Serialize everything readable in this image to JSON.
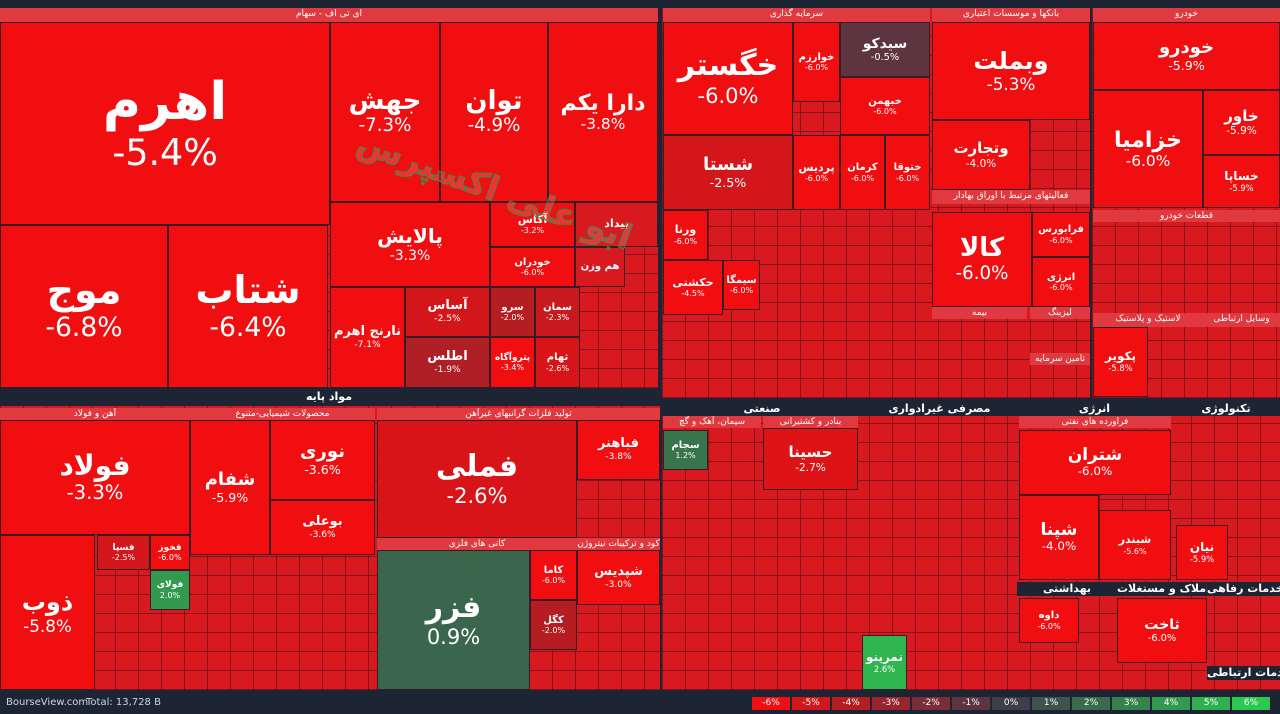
{
  "header": {
    "top_sub": "ای تی اف - سهام"
  },
  "sectors": [
    {
      "title": "مواد پایه"
    },
    {
      "title": "آهن و فولاد"
    },
    {
      "title": "محصولات شیمیایی-متنوع"
    },
    {
      "title": "تولید فلزات گرانبهای غیرآهن"
    },
    {
      "title": "کانی های فلزی"
    },
    {
      "title": "کود و ترکیبات نیتروژن"
    },
    {
      "title": "سرمایه گذاری"
    },
    {
      "title": "بانکها و موسسات اعتباری"
    },
    {
      "title": "فعالیتهای مرتبط با اوراق بهادار"
    },
    {
      "title": "بیمه"
    },
    {
      "title": "لیزینگ"
    },
    {
      "title": "تامین سرمایه"
    },
    {
      "title": "خودرو"
    },
    {
      "title": "قطعات خودرو"
    },
    {
      "title": "لاستیک و پلاستیک"
    },
    {
      "title": "وسایل ارتباطی"
    },
    {
      "title": "صنعتی"
    },
    {
      "title": "مصرفی غیرادواری"
    },
    {
      "title": "انرژی"
    },
    {
      "title": "تکنولوژی"
    },
    {
      "title": "سیمان، آهک و گچ"
    },
    {
      "title": "بنادر و کشتیرانی"
    },
    {
      "title": "فراورده های نفتی"
    },
    {
      "title": "بهداشتی"
    },
    {
      "title": "املاک و مستغلات"
    },
    {
      "title": "خدمات رفاهی"
    },
    {
      "title": "خدمات ارتباطی"
    }
  ],
  "tiles": [
    {
      "name": "اهرم",
      "change": "-5.4%"
    },
    {
      "name": "موج",
      "change": "-6.8%"
    },
    {
      "name": "شتاب",
      "change": "-6.4%"
    },
    {
      "name": "جهش",
      "change": "-7.3%"
    },
    {
      "name": "توان",
      "change": "-4.9%"
    },
    {
      "name": "دارا یکم",
      "change": "-3.8%"
    },
    {
      "name": "پالایش",
      "change": "-3.3%"
    },
    {
      "name": "نارنج اهرم",
      "change": "-7.1%"
    },
    {
      "name": "آساس",
      "change": "-2.5%"
    },
    {
      "name": "اطلس",
      "change": "-1.9%"
    },
    {
      "name": "آکاس",
      "change": "-3.2%"
    },
    {
      "name": "بیداد"
    },
    {
      "name": "خودران",
      "change": "-6.0%"
    },
    {
      "name": "هم وزن"
    },
    {
      "name": "سرو",
      "change": "-2.0%"
    },
    {
      "name": "سمان",
      "change": "-2.3%"
    },
    {
      "name": "پتروآگاه",
      "change": "-3.4%"
    },
    {
      "name": "ثهام",
      "change": "-2.6%"
    },
    {
      "name": "فولاد",
      "change": "-3.3%"
    },
    {
      "name": "ذوب",
      "change": "-5.8%"
    },
    {
      "name": "شفام",
      "change": "-5.9%"
    },
    {
      "name": "نوری",
      "change": "-3.6%"
    },
    {
      "name": "بوعلی",
      "change": "-3.6%"
    },
    {
      "name": "فملی",
      "change": "-2.6%"
    },
    {
      "name": "فباهنر",
      "change": "-3.8%"
    },
    {
      "name": "فزر",
      "change": "0.9%"
    },
    {
      "name": "کاما",
      "change": "-6.0%"
    },
    {
      "name": "کگل",
      "change": "-2.0%"
    },
    {
      "name": "شپدیس",
      "change": "-3.0%"
    },
    {
      "name": "فخوز",
      "change": "-6.0%"
    },
    {
      "name": "فسپا",
      "change": "-2.5%"
    },
    {
      "name": "فولای",
      "change": "2.0%"
    },
    {
      "name": "خگستر",
      "change": "-6.0%"
    },
    {
      "name": "شستا",
      "change": "-2.5%"
    },
    {
      "name": "سیدکو",
      "change": "-0.5%"
    },
    {
      "name": "خوارزم",
      "change": "-6.0%"
    },
    {
      "name": "خبهمن",
      "change": "-6.0%"
    },
    {
      "name": "پردیس",
      "change": "-6.0%"
    },
    {
      "name": "کرمان",
      "change": "-6.0%"
    },
    {
      "name": "ختوقا",
      "change": "-6.0%"
    },
    {
      "name": "وبملت",
      "change": "-5.3%"
    },
    {
      "name": "وتجارت",
      "change": "-4.0%"
    },
    {
      "name": "کالا",
      "change": "-6.0%"
    },
    {
      "name": "فرابورس",
      "change": "-6.0%"
    },
    {
      "name": "انرژی",
      "change": "-6.0%"
    },
    {
      "name": "خودرو",
      "change": "-5.9%"
    },
    {
      "name": "خزامیا",
      "change": "-6.0%"
    },
    {
      "name": "خاور",
      "change": "-5.9%"
    },
    {
      "name": "خساپا",
      "change": "-5.9%"
    },
    {
      "name": "پکویر",
      "change": "-5.8%"
    },
    {
      "name": "ورنا",
      "change": "-6.0%"
    },
    {
      "name": "حکشتی",
      "change": "-4.5%"
    },
    {
      "name": "سیمگا",
      "change": "-6.0%"
    },
    {
      "name": "سجام",
      "change": "1.2%"
    },
    {
      "name": "حسینا",
      "change": "-2.7%"
    },
    {
      "name": "نمرینو",
      "change": "2.6%"
    },
    {
      "name": "شتران",
      "change": "-6.0%"
    },
    {
      "name": "شپنا",
      "change": "-4.0%"
    },
    {
      "name": "شبندر",
      "change": "-5.6%"
    },
    {
      "name": "نیان",
      "change": "-5.9%"
    },
    {
      "name": "داوه",
      "change": "-6.0%"
    },
    {
      "name": "ثاخت",
      "change": "-6.0%"
    }
  ],
  "watermark": "ابو علی اکسپرس",
  "footer": {
    "site": "BourseView.com",
    "total": "Total: 13,728 B",
    "legend": [
      "-6%",
      "-5%",
      "-4%",
      "-3%",
      "-2%",
      "-1%",
      "0%",
      "1%",
      "2%",
      "3%",
      "4%",
      "5%",
      "6%"
    ]
  }
}
